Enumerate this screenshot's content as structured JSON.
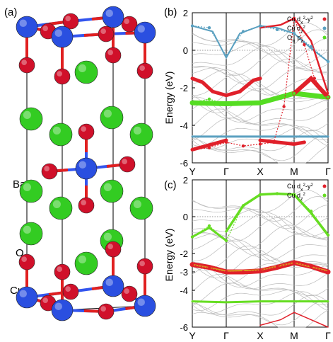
{
  "panels": {
    "a": {
      "label": "(a)",
      "atoms": {
        "ba": "Ba",
        "o": "O",
        "cu": "Cu"
      }
    },
    "b": {
      "label": "(b)"
    },
    "c": {
      "label": "(c)"
    }
  },
  "colors": {
    "cu_atom": "#2a4fe0",
    "o_atom": "#d0102a",
    "ba_atom": "#33cc22",
    "bond_blue": "#3355ee",
    "bond_red": "#e02020",
    "dx2y2": "#e0202a",
    "dz2_b": "#5aa0c0",
    "opz": "#55dd22",
    "dz2_c": "#66dd22",
    "bands": "#bbbbbb",
    "fermi": "#777777"
  },
  "chart_data": [
    {
      "type": "scatter",
      "panel": "(b)",
      "ylabel": "Energy (eV)",
      "ylim": [
        -6,
        2
      ],
      "yticks": [
        "2",
        "0",
        "-2",
        "-4",
        "-6"
      ],
      "ytick_values": [
        2,
        0,
        -2,
        -4,
        -6
      ],
      "kpath": [
        "Y",
        "Γ",
        "X",
        "M",
        "Γ"
      ],
      "fermi_level": 0,
      "legend": {
        "placement": "top-right",
        "entries": [
          {
            "base": "Cu d",
            "sub": "x",
            "sup": "2",
            "tail": "-y",
            "sup2": "2",
            "color": "#e0202a"
          },
          {
            "base": "Cu d",
            "sub": "z",
            "sup": "2",
            "color": "#5aa0c0"
          },
          {
            "base": "O",
            "sub": "π",
            "tail": " p",
            "sub2": "z",
            "color": "#55dd22"
          }
        ]
      },
      "series": [
        {
          "name": "Cu dx2-y2",
          "color": "#e0202a",
          "x": [
            0,
            0.5,
            1,
            1.5,
            2,
            2.4,
            2.7,
            3,
            3.3,
            3.6,
            4
          ],
          "y": [
            -5.3,
            -5.2,
            -4.9,
            -5.1,
            -5.0,
            -4.9,
            -3.0,
            1.7,
            0.3,
            -1.5,
            -2.5
          ]
        },
        {
          "name": "Cu dz2",
          "color": "#5aa0c0",
          "x": [
            0,
            0.5,
            1,
            1.5,
            2,
            2.5,
            3,
            3.5,
            4
          ],
          "y": [
            1.3,
            1.2,
            -0.3,
            1.0,
            1.3,
            1.1,
            0.9,
            0.2,
            -0.6
          ]
        },
        {
          "name": "Oπ pz",
          "color": "#55dd22",
          "x": [
            0,
            0.5,
            1,
            2,
            2.5,
            3,
            3.5,
            4
          ],
          "y": [
            -2.8,
            -2.6,
            -2.9,
            -2.8,
            -2.6,
            -2.3,
            -2.4,
            -2.5
          ]
        }
      ]
    },
    {
      "type": "scatter",
      "panel": "(c)",
      "ylabel": "Energy (eV)",
      "ylim": [
        -6,
        2
      ],
      "yticks": [
        "2",
        "0",
        "-2",
        "-3",
        "-4",
        "-6"
      ],
      "ytick_values": [
        2,
        0,
        -2,
        -3,
        -4,
        -6
      ],
      "kpath": [
        "Y",
        "Γ",
        "X",
        "M",
        "Γ"
      ],
      "fermi_level": 0,
      "legend": {
        "placement": "top-right",
        "entries": [
          {
            "base": "Cu d",
            "sub": "x",
            "sup": "2",
            "tail": "-y",
            "sup2": "2",
            "color": "#e0202a"
          },
          {
            "base": "Cu d",
            "sub": "z",
            "sup": "2",
            "color": "#66dd22"
          }
        ]
      },
      "series": [
        {
          "name": "Cu dx2-y2",
          "color": "#e0202a",
          "x": [
            0,
            0.5,
            1,
            1.5,
            2,
            2.5,
            3,
            3.5,
            4
          ],
          "y": [
            -2.6,
            -2.8,
            -3.0,
            -3.0,
            -2.9,
            -2.7,
            -2.5,
            -2.7,
            -3.0
          ]
        },
        {
          "name": "Cu dz2",
          "color": "#66dd22",
          "x": [
            0,
            0.5,
            1,
            1.5,
            2,
            2.5,
            3,
            3.5,
            4
          ],
          "y": [
            -1.1,
            -0.5,
            -1.3,
            0.6,
            1.2,
            1.25,
            1.2,
            0.3,
            -1.0
          ]
        }
      ]
    }
  ]
}
